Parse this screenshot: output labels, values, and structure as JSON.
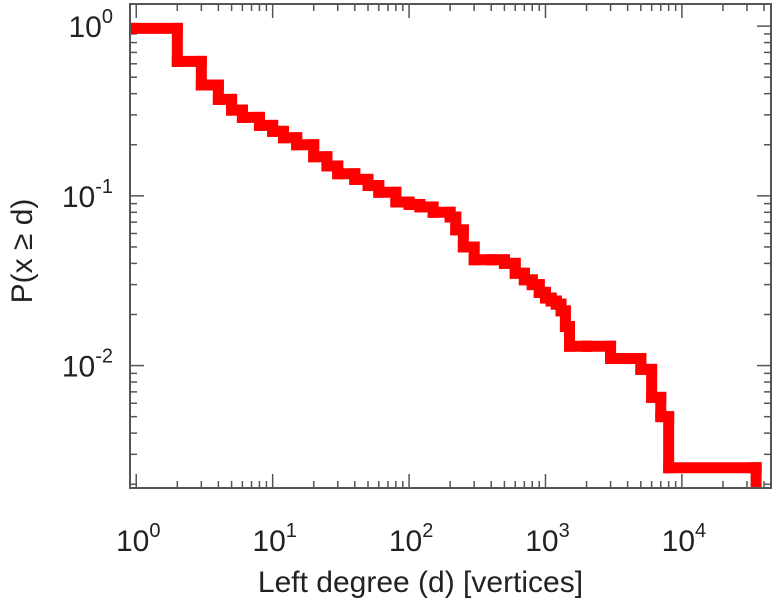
{
  "chart_data": {
    "type": "line",
    "title": "",
    "xlabel": "Left degree (d) [vertices]",
    "ylabel": "P(x ≥ d)",
    "x_scale": "log",
    "y_scale": "log",
    "xlim": [
      0.9,
      45000
    ],
    "ylim": [
      0.0019,
      1.35
    ],
    "grid": false,
    "line_style": "step",
    "series": [
      {
        "color": "#ff0000",
        "x": [
          1,
          2,
          3,
          4,
          5,
          6,
          8,
          10,
          12,
          15,
          20,
          25,
          30,
          40,
          50,
          60,
          80,
          100,
          120,
          150,
          200,
          220,
          250,
          300,
          400,
          500,
          600,
          700,
          800,
          900,
          1000,
          1100,
          1200,
          1300,
          1400,
          1500,
          2000,
          3000,
          4000,
          5000,
          6000,
          7000,
          8000,
          35000
        ],
        "y": [
          0.97,
          0.62,
          0.45,
          0.37,
          0.32,
          0.29,
          0.26,
          0.24,
          0.22,
          0.2,
          0.17,
          0.15,
          0.135,
          0.125,
          0.115,
          0.105,
          0.092,
          0.089,
          0.086,
          0.08,
          0.075,
          0.063,
          0.05,
          0.042,
          0.042,
          0.04,
          0.035,
          0.032,
          0.03,
          0.027,
          0.025,
          0.024,
          0.023,
          0.021,
          0.017,
          0.013,
          0.013,
          0.011,
          0.011,
          0.0095,
          0.0065,
          0.005,
          0.0025,
          0.0025
        ]
      }
    ],
    "x_ticks": [
      {
        "base": "10",
        "exp": "0"
      },
      {
        "base": "10",
        "exp": "1"
      },
      {
        "base": "10",
        "exp": "2"
      },
      {
        "base": "10",
        "exp": "3"
      },
      {
        "base": "10",
        "exp": "4"
      }
    ],
    "y_ticks": [
      {
        "base": "10",
        "exp": "0"
      },
      {
        "base": "10",
        "exp": "-1"
      },
      {
        "base": "10",
        "exp": "-2"
      }
    ]
  }
}
